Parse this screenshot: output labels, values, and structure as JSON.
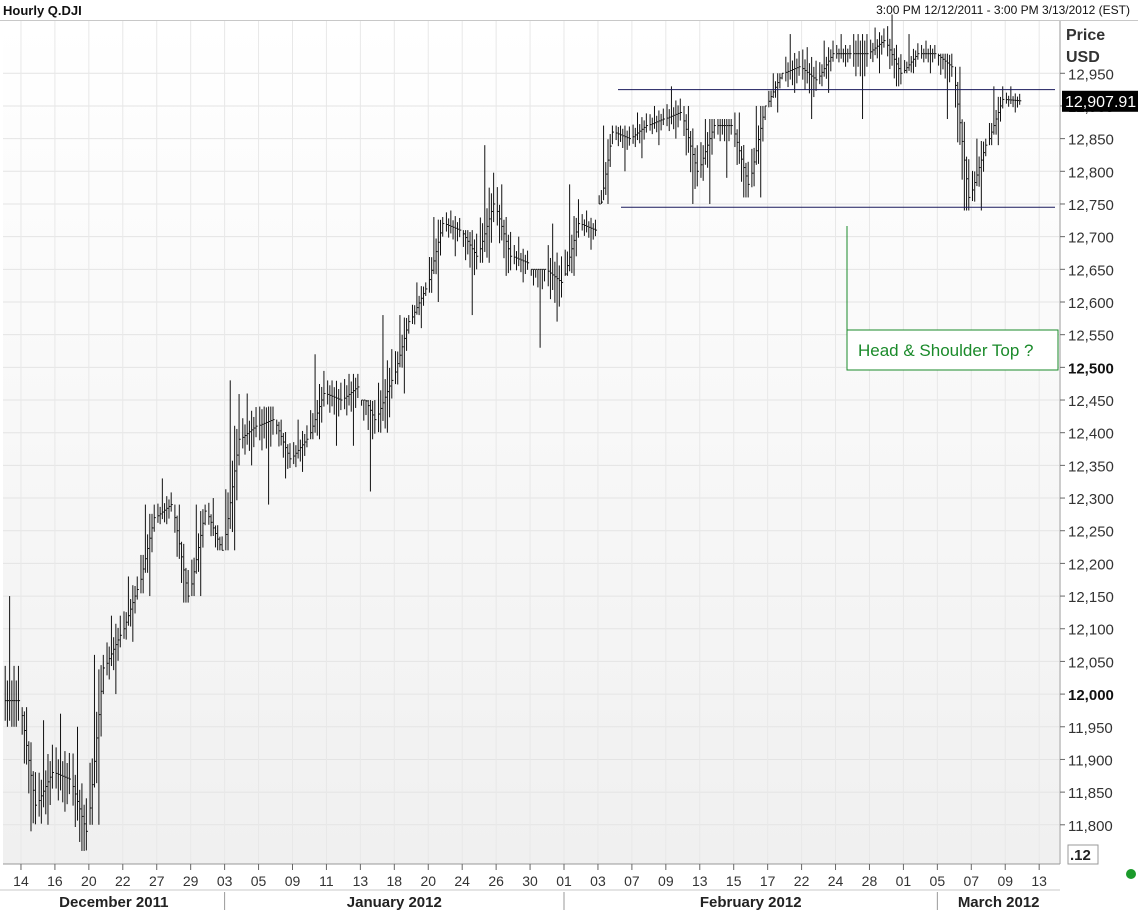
{
  "header": {
    "title": "Hourly Q.DJI",
    "range": "3:00 PM 12/12/2011 - 3:00 PM 3/13/2012 (EST)"
  },
  "axis": {
    "price_label": "Price",
    "currency_label": "USD",
    "corner_label": ".12"
  },
  "last_price": "12,907.91",
  "annotation": {
    "text": "Head & Shoulder Top ?"
  },
  "colors": {
    "bars": "#111111",
    "resistance": "#1a1a5c",
    "annotation": "#1a8a2a",
    "status": "#1a9a2a"
  },
  "chart_data": {
    "type": "ohlc",
    "title": "Hourly Q.DJI",
    "ylabel": "Price USD",
    "ylim": [
      11740,
      13030
    ],
    "y_ticks": [
      11800,
      11850,
      11900,
      11950,
      12000,
      12050,
      12100,
      12150,
      12200,
      12250,
      12300,
      12350,
      12400,
      12450,
      12500,
      12550,
      12600,
      12650,
      12700,
      12750,
      12800,
      12850,
      12900,
      12950
    ],
    "y_tick_labels": [
      "11,800",
      "11,850",
      "11,900",
      "11,950",
      "12,000",
      "12,050",
      "12,100",
      "12,150",
      "12,200",
      "12,250",
      "12,300",
      "12,350",
      "12,400",
      "12,450",
      "12,500",
      "12,550",
      "12,600",
      "12,650",
      "12,700",
      "12,750",
      "12,800",
      "12,850",
      "12,900",
      "12,950"
    ],
    "y_bold_ticks": [
      "12,000",
      "12,500"
    ],
    "x_tick_labels": [
      "14",
      "16",
      "20",
      "22",
      "27",
      "29",
      "03",
      "05",
      "09",
      "11",
      "13",
      "18",
      "20",
      "24",
      "26",
      "30",
      "01",
      "03",
      "07",
      "09",
      "13",
      "15",
      "17",
      "22",
      "24",
      "28",
      "01",
      "05",
      "07",
      "09",
      "13"
    ],
    "months": [
      "December 2011",
      "January 2012",
      "February 2012",
      "March 2012"
    ],
    "last_close": 12907.91,
    "lines": [
      {
        "name": "resistance",
        "value": 12925
      },
      {
        "name": "support",
        "value": 12745
      }
    ],
    "daily": [
      {
        "date": "2011-12-13",
        "low": 11950,
        "high": 12150,
        "close": 11990
      },
      {
        "date": "2011-12-14",
        "low": 11790,
        "high": 11980,
        "close": 11830
      },
      {
        "date": "2011-12-15",
        "low": 11800,
        "high": 11960,
        "close": 11880
      },
      {
        "date": "2011-12-16",
        "low": 11820,
        "high": 11970,
        "close": 11870
      },
      {
        "date": "2011-12-19",
        "low": 11760,
        "high": 11950,
        "close": 11790
      },
      {
        "date": "2011-12-20",
        "low": 11800,
        "high": 12060,
        "close": 12040
      },
      {
        "date": "2011-12-21",
        "low": 12000,
        "high": 12120,
        "close": 12090
      },
      {
        "date": "2011-12-22",
        "low": 12080,
        "high": 12180,
        "close": 12160
      },
      {
        "date": "2011-12-23",
        "low": 12150,
        "high": 12290,
        "close": 12270
      },
      {
        "date": "2011-12-27",
        "low": 12260,
        "high": 12330,
        "close": 12290
      },
      {
        "date": "2011-12-28",
        "low": 12140,
        "high": 12290,
        "close": 12150
      },
      {
        "date": "2011-12-29",
        "low": 12150,
        "high": 12290,
        "close": 12280
      },
      {
        "date": "2011-12-30",
        "low": 12220,
        "high": 12300,
        "close": 12220
      },
      {
        "date": "2012-01-03",
        "low": 12220,
        "high": 12480,
        "close": 12390
      },
      {
        "date": "2012-01-04",
        "low": 12350,
        "high": 12460,
        "close": 12410
      },
      {
        "date": "2012-01-05",
        "low": 12290,
        "high": 12440,
        "close": 12420
      },
      {
        "date": "2012-01-06",
        "low": 12330,
        "high": 12420,
        "close": 12360
      },
      {
        "date": "2012-01-09",
        "low": 12340,
        "high": 12420,
        "close": 12390
      },
      {
        "date": "2012-01-10",
        "low": 12390,
        "high": 12520,
        "close": 12460
      },
      {
        "date": "2012-01-11",
        "low": 12380,
        "high": 12480,
        "close": 12450
      },
      {
        "date": "2012-01-12",
        "low": 12380,
        "high": 12490,
        "close": 12470
      },
      {
        "date": "2012-01-13",
        "low": 12310,
        "high": 12450,
        "close": 12420
      },
      {
        "date": "2012-01-17",
        "low": 12400,
        "high": 12580,
        "close": 12480
      },
      {
        "date": "2012-01-18",
        "low": 12460,
        "high": 12580,
        "close": 12570
      },
      {
        "date": "2012-01-19",
        "low": 12560,
        "high": 12630,
        "close": 12620
      },
      {
        "date": "2012-01-20",
        "low": 12600,
        "high": 12730,
        "close": 12720
      },
      {
        "date": "2012-01-23",
        "low": 12670,
        "high": 12740,
        "close": 12710
      },
      {
        "date": "2012-01-24",
        "low": 12580,
        "high": 12710,
        "close": 12670
      },
      {
        "date": "2012-01-25",
        "low": 12660,
        "high": 12840,
        "close": 12750
      },
      {
        "date": "2012-01-26",
        "low": 12640,
        "high": 12780,
        "close": 12670
      },
      {
        "date": "2012-01-27",
        "low": 12630,
        "high": 12700,
        "close": 12660
      },
      {
        "date": "2012-01-30",
        "low": 12530,
        "high": 12650,
        "close": 12650
      },
      {
        "date": "2012-01-31",
        "low": 12570,
        "high": 12720,
        "close": 12630
      },
      {
        "date": "2012-02-01",
        "low": 12640,
        "high": 12780,
        "close": 12720
      },
      {
        "date": "2012-02-02",
        "low": 12680,
        "high": 12740,
        "close": 12710
      },
      {
        "date": "2012-02-03",
        "low": 12750,
        "high": 12870,
        "close": 12860
      },
      {
        "date": "2012-02-06",
        "low": 12800,
        "high": 12870,
        "close": 12850
      },
      {
        "date": "2012-02-07",
        "low": 12820,
        "high": 12890,
        "close": 12870
      },
      {
        "date": "2012-02-08",
        "low": 12840,
        "high": 12900,
        "close": 12880
      },
      {
        "date": "2012-02-09",
        "low": 12850,
        "high": 12930,
        "close": 12890
      },
      {
        "date": "2012-02-10",
        "low": 12750,
        "high": 12900,
        "close": 12800
      },
      {
        "date": "2012-02-13",
        "low": 12750,
        "high": 12880,
        "close": 12870
      },
      {
        "date": "2012-02-14",
        "low": 12790,
        "high": 12880,
        "close": 12870
      },
      {
        "date": "2012-02-15",
        "low": 12760,
        "high": 12890,
        "close": 12780
      },
      {
        "date": "2012-02-16",
        "low": 12760,
        "high": 12900,
        "close": 12900
      },
      {
        "date": "2012-02-17",
        "low": 12890,
        "high": 12950,
        "close": 12950
      },
      {
        "date": "2012-02-21",
        "low": 12920,
        "high": 13010,
        "close": 12960
      },
      {
        "date": "2012-02-22",
        "low": 12880,
        "high": 12990,
        "close": 12940
      },
      {
        "date": "2012-02-23",
        "low": 12920,
        "high": 13000,
        "close": 12980
      },
      {
        "date": "2012-02-24",
        "low": 12960,
        "high": 13010,
        "close": 12980
      },
      {
        "date": "2012-02-27",
        "low": 12880,
        "high": 13010,
        "close": 12980
      },
      {
        "date": "2012-02-28",
        "low": 12950,
        "high": 13020,
        "close": 13000
      },
      {
        "date": "2012-02-29",
        "low": 12930,
        "high": 13040,
        "close": 12950
      },
      {
        "date": "2012-03-01",
        "low": 12950,
        "high": 13010,
        "close": 12980
      },
      {
        "date": "2012-03-02",
        "low": 12950,
        "high": 13000,
        "close": 12980
      },
      {
        "date": "2012-03-05",
        "low": 12880,
        "high": 12980,
        "close": 12960
      },
      {
        "date": "2012-03-06",
        "low": 12740,
        "high": 12960,
        "close": 12760
      },
      {
        "date": "2012-03-07",
        "low": 12740,
        "high": 12850,
        "close": 12840
      },
      {
        "date": "2012-03-08",
        "low": 12840,
        "high": 12930,
        "close": 12910
      },
      {
        "date": "2012-03-09",
        "low": 12890,
        "high": 12930,
        "close": 12907.91
      }
    ]
  }
}
